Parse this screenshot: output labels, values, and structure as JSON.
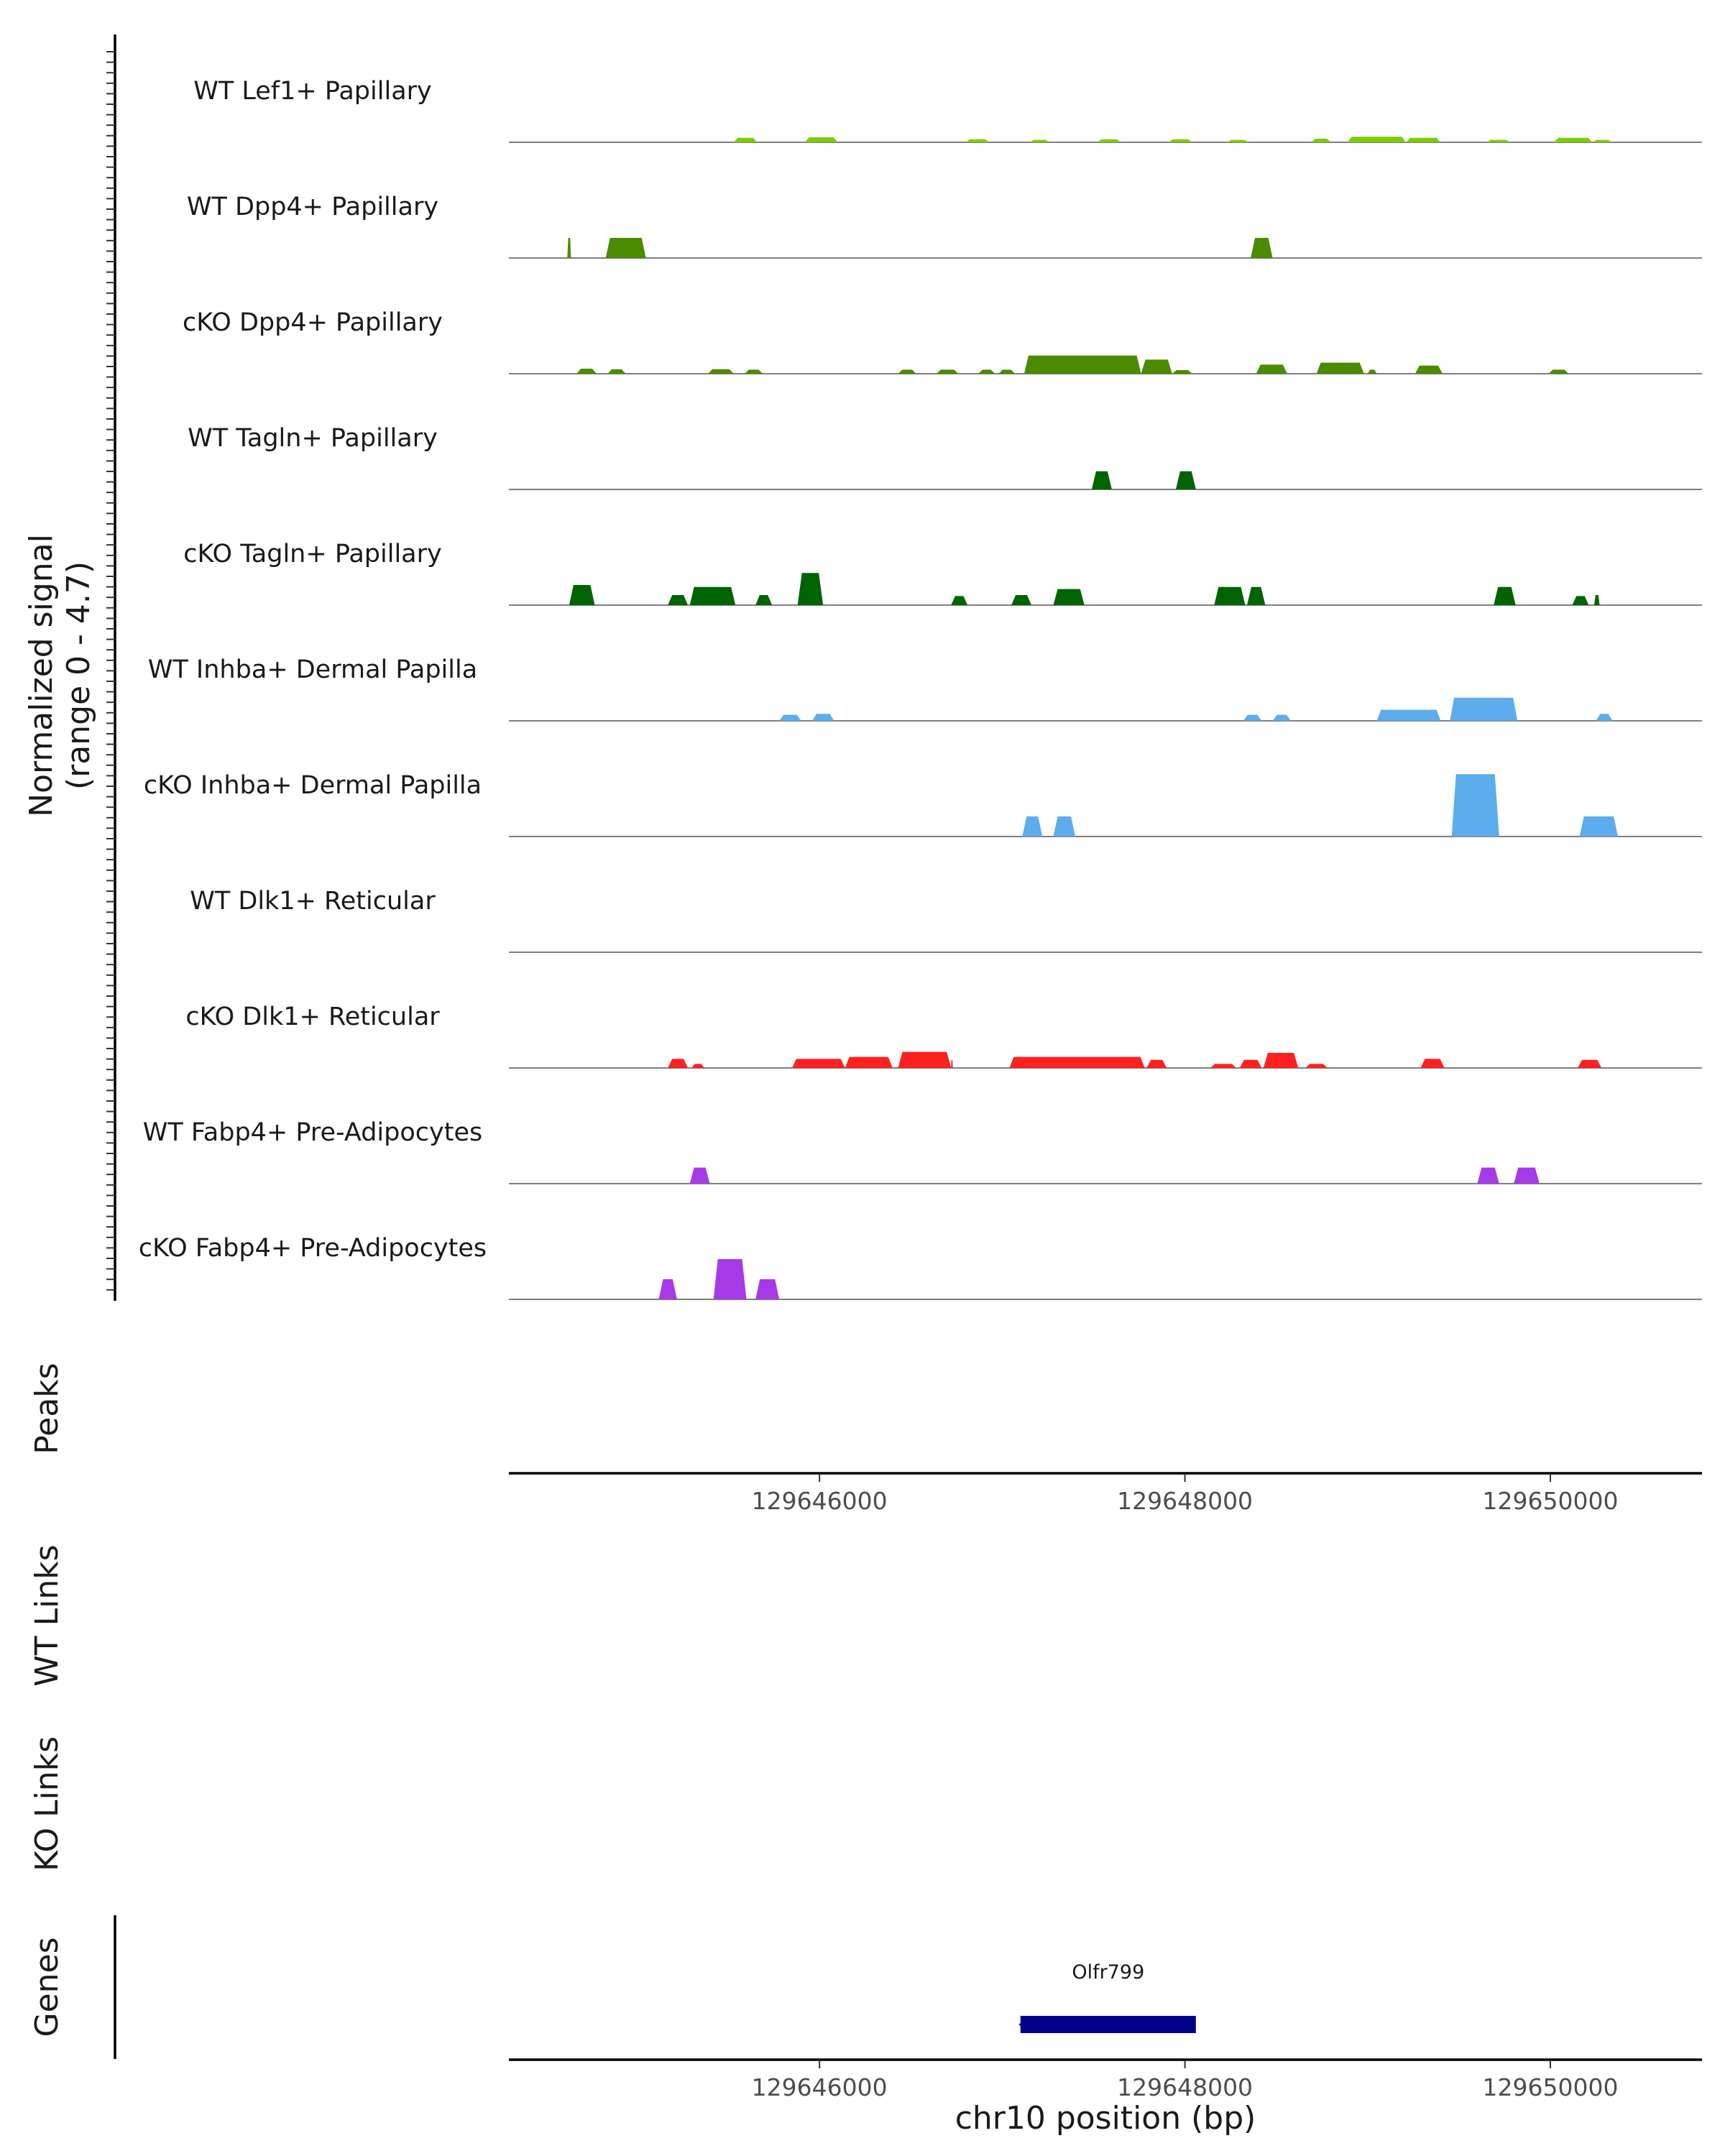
{
  "chart_data": {
    "type": "coverage-track",
    "signal_axis_title": "Normalized signal",
    "signal_axis_subtitle": "(range 0 - 4.7)",
    "signal_range": [
      0,
      4.7
    ],
    "region": {
      "chrom": "chr10",
      "start": 129644300,
      "end": 129650830
    },
    "x_axis_title": "chr10 position (bp)",
    "x_ticks": [
      129646000,
      129648000,
      129650000
    ],
    "x_tick_labels": [
      "129646000",
      "129648000",
      "129650000"
    ],
    "tracks": [
      {
        "name": "WT Lef1+ Papillary",
        "color": "#7CCD00",
        "peaks": [
          [
            129645530,
            129645660,
            0.22
          ],
          [
            129645920,
            129646100,
            0.25
          ],
          [
            129646800,
            129646930,
            0.15
          ],
          [
            129647150,
            129647260,
            0.12
          ],
          [
            129647520,
            129647650,
            0.15
          ],
          [
            129647910,
            129648040,
            0.15
          ],
          [
            129648230,
            129648350,
            0.12
          ],
          [
            129648690,
            129648800,
            0.18
          ],
          [
            129648890,
            129649210,
            0.28
          ],
          [
            129649210,
            129649400,
            0.22
          ],
          [
            129649650,
            129649780,
            0.12
          ],
          [
            129650020,
            129650230,
            0.22
          ],
          [
            129650230,
            129650340,
            0.12
          ]
        ]
      },
      {
        "name": "WT Dpp4+ Papillary",
        "color": "#4A8B00",
        "peaks": [
          [
            129644620,
            129644640,
            1.0
          ],
          [
            129644830,
            129645050,
            1.0
          ],
          [
            129648360,
            129648480,
            1.0
          ]
        ]
      },
      {
        "name": "cKO Dpp4+ Papillary",
        "color": "#4A8B00",
        "peaks": [
          [
            129644670,
            129644780,
            0.25
          ],
          [
            129644840,
            129644940,
            0.22
          ],
          [
            129645390,
            129645530,
            0.22
          ],
          [
            129645590,
            129645690,
            0.2
          ],
          [
            129646430,
            129646530,
            0.2
          ],
          [
            129646640,
            129646760,
            0.2
          ],
          [
            129646870,
            129646960,
            0.2
          ],
          [
            129646980,
            129647070,
            0.2
          ],
          [
            129647120,
            129647760,
            0.9
          ],
          [
            129647760,
            129647930,
            0.7
          ],
          [
            129647930,
            129648040,
            0.18
          ],
          [
            129648390,
            129648560,
            0.45
          ],
          [
            129648720,
            129648980,
            0.55
          ],
          [
            129649000,
            129649050,
            0.2
          ],
          [
            129649260,
            129649410,
            0.4
          ],
          [
            129649990,
            129650100,
            0.2
          ]
        ]
      },
      {
        "name": "WT Tagln+ Papillary",
        "color": "#006400",
        "peaks": [
          [
            129647490,
            129647600,
            0.9
          ],
          [
            129647950,
            129648060,
            0.9
          ]
        ]
      },
      {
        "name": "cKO Tagln+ Papillary",
        "color": "#006400",
        "peaks": [
          [
            129644630,
            129644770,
            1.0
          ],
          [
            129645170,
            129645280,
            0.5
          ],
          [
            129645290,
            129645540,
            0.9
          ],
          [
            129645650,
            129645740,
            0.5
          ],
          [
            129645880,
            129646020,
            1.6
          ],
          [
            129646720,
            129646810,
            0.45
          ],
          [
            129647050,
            129647160,
            0.5
          ],
          [
            129647280,
            129647450,
            0.8
          ],
          [
            129648160,
            129648330,
            0.9
          ],
          [
            129648340,
            129648440,
            0.9
          ],
          [
            129649690,
            129649810,
            0.9
          ],
          [
            129650120,
            129650210,
            0.45
          ],
          [
            129650240,
            129650270,
            0.5
          ]
        ]
      },
      {
        "name": "WT Inhba+ Dermal Papilla",
        "color": "#5DADEC",
        "peaks": [
          [
            129645780,
            129645900,
            0.3
          ],
          [
            129645960,
            129646080,
            0.35
          ],
          [
            129648320,
            129648420,
            0.3
          ],
          [
            129648480,
            129648580,
            0.3
          ],
          [
            129649050,
            129649400,
            0.55
          ],
          [
            129649450,
            129649820,
            1.15
          ],
          [
            129650250,
            129650340,
            0.35
          ]
        ]
      },
      {
        "name": "cKO Inhba+ Dermal Papilla",
        "color": "#5DADEC",
        "peaks": [
          [
            129647110,
            129647220,
            1.0
          ],
          [
            129647280,
            129647400,
            1.0
          ],
          [
            129649460,
            129649720,
            3.1
          ],
          [
            129650160,
            129650370,
            1.0
          ]
        ]
      },
      {
        "name": "WT Dlk1+ Reticular",
        "color": "#FF0000",
        "peaks": []
      },
      {
        "name": "cKO Dlk1+ Reticular",
        "color": "#FF2020",
        "peaks": [
          [
            129645170,
            129645280,
            0.45
          ],
          [
            129645300,
            129645370,
            0.2
          ],
          [
            129645850,
            129646140,
            0.45
          ],
          [
            129646140,
            129646400,
            0.55
          ],
          [
            129646430,
            129646720,
            0.8
          ],
          [
            129646720,
            129646730,
            0.4
          ],
          [
            129647040,
            129647780,
            0.55
          ],
          [
            129647790,
            129647900,
            0.4
          ],
          [
            129648140,
            129648280,
            0.2
          ],
          [
            129648300,
            129648420,
            0.4
          ],
          [
            129648430,
            129648620,
            0.75
          ],
          [
            129648660,
            129648780,
            0.2
          ],
          [
            129649290,
            129649420,
            0.45
          ],
          [
            129650150,
            129650280,
            0.4
          ]
        ]
      },
      {
        "name": "WT Fabp4+ Pre-Adipocytes",
        "color": "#A63AE8",
        "peaks": [
          [
            129645290,
            129645400,
            0.8
          ],
          [
            129649600,
            129649720,
            0.8
          ],
          [
            129649800,
            129649940,
            0.8
          ]
        ]
      },
      {
        "name": "cKO Fabp4+ Pre-Adipocytes",
        "color": "#A63AE8",
        "peaks": [
          [
            129645120,
            129645220,
            1.0
          ],
          [
            129645420,
            129645600,
            2.0
          ],
          [
            129645650,
            129645780,
            1.0
          ]
        ]
      }
    ],
    "panels": [
      {
        "name": "Peaks",
        "items": []
      },
      {
        "name": "WT Links",
        "items": []
      },
      {
        "name": "KO Links",
        "items": []
      }
    ],
    "genes_panel_title": "Genes",
    "genes": [
      {
        "name": "Olfr799",
        "start": 129647100,
        "end": 129648060,
        "strand": "-",
        "color": "#00008B"
      }
    ]
  }
}
